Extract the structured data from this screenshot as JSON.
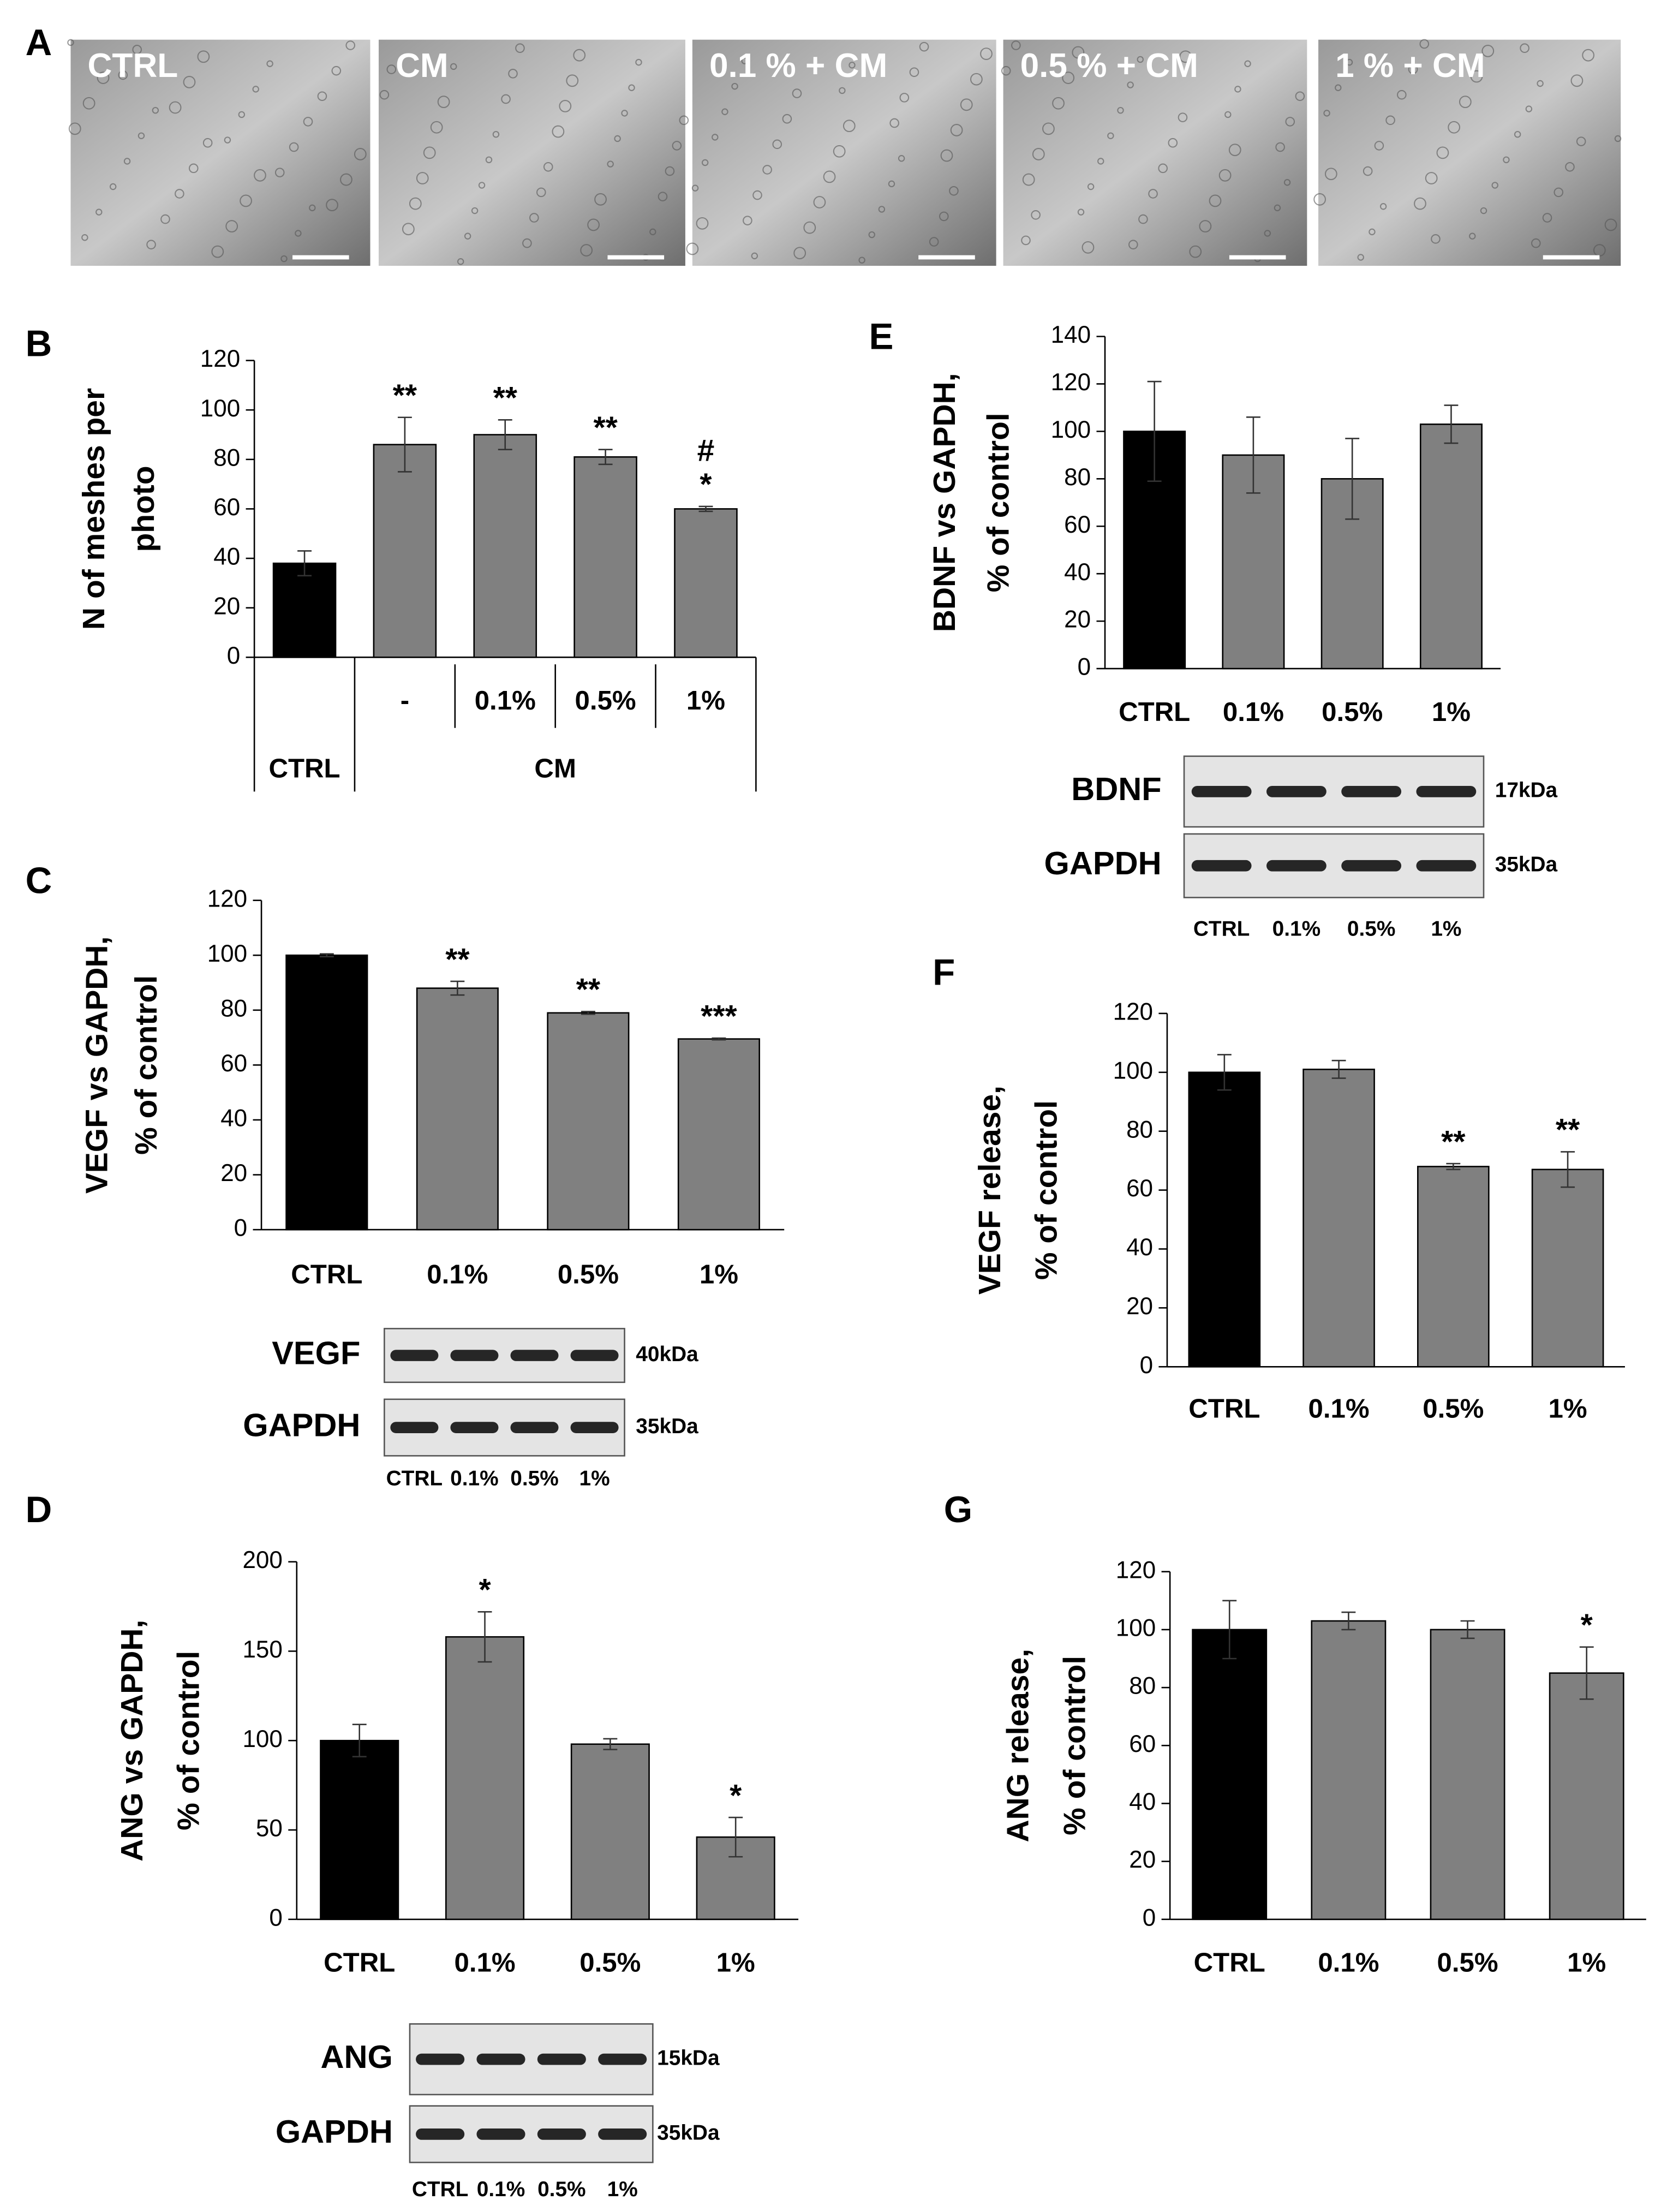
{
  "panel_a": {
    "label": "A",
    "images": [
      "CTRL",
      "CM",
      "0.1 % + CM",
      "0.5 % + CM",
      "1 % + CM"
    ]
  },
  "chart_data": [
    {
      "type": "bar",
      "label": "B",
      "ylabel": [
        "N of meshes  per",
        "photo"
      ],
      "categories": [
        null,
        "-",
        "0.1%",
        "0.5%",
        "1%"
      ],
      "groups": [
        {
          "label": "CTRL",
          "count": 1
        },
        {
          "label": "CM",
          "count": 4
        }
      ],
      "values": [
        38,
        86,
        90,
        81,
        60
      ],
      "errors": [
        5,
        11,
        6,
        3,
        1
      ],
      "significance": [
        null,
        [
          "**"
        ],
        [
          "**"
        ],
        [
          "**"
        ],
        [
          "#",
          "*"
        ]
      ],
      "colors": [
        "#000000",
        "#808080",
        "#808080",
        "#808080",
        "#808080"
      ],
      "ylim": [
        0,
        120
      ],
      "yticks": [
        0,
        20,
        40,
        60,
        80,
        100,
        120
      ]
    },
    {
      "type": "bar",
      "label": "C",
      "ylabel": [
        "VEGF vs GAPDH,",
        "% of control"
      ],
      "categories": [
        "CTRL",
        "0.1%",
        "0.5%",
        "1%"
      ],
      "values": [
        100,
        88,
        79,
        69.5
      ],
      "errors": [
        0.5,
        2.5,
        0.5,
        0.3
      ],
      "significance": [
        null,
        [
          "**"
        ],
        [
          "**"
        ],
        [
          "***"
        ]
      ],
      "colors": [
        "#000000",
        "#808080",
        "#808080",
        "#808080"
      ],
      "ylim": [
        0,
        120
      ],
      "yticks": [
        0,
        20,
        40,
        60,
        80,
        100,
        120
      ],
      "blot": {
        "rows": [
          {
            "name": "VEGF",
            "size": "40kDa"
          },
          {
            "name": "GAPDH",
            "size": "35kDa"
          }
        ],
        "lanes": [
          "CTRL",
          "0.1%",
          "0.5%",
          "1%"
        ]
      }
    },
    {
      "type": "bar",
      "label": "D",
      "ylabel": [
        "ANG vs GAPDH,",
        "% of control"
      ],
      "categories": [
        "CTRL",
        "0.1%",
        "0.5%",
        "1%"
      ],
      "values": [
        100,
        158,
        98,
        46
      ],
      "errors": [
        9,
        14,
        3,
        11
      ],
      "significance": [
        null,
        [
          "*"
        ],
        null,
        [
          "*"
        ]
      ],
      "colors": [
        "#000000",
        "#808080",
        "#808080",
        "#808080"
      ],
      "ylim": [
        0,
        200
      ],
      "yticks": [
        0,
        50,
        100,
        150,
        200
      ],
      "blot": {
        "rows": [
          {
            "name": "ANG",
            "size": "15kDa"
          },
          {
            "name": "GAPDH",
            "size": "35kDa"
          }
        ],
        "lanes": [
          "CTRL",
          "0.1%",
          "0.5%",
          "1%"
        ]
      }
    },
    {
      "type": "bar",
      "label": "E",
      "ylabel": [
        "BDNF vs GAPDH,",
        "% of control"
      ],
      "categories": [
        "CTRL",
        "0.1%",
        "0.5%",
        "1%"
      ],
      "values": [
        100,
        90,
        80,
        103
      ],
      "errors": [
        21,
        16,
        17,
        8
      ],
      "significance": [
        null,
        null,
        null,
        null
      ],
      "colors": [
        "#000000",
        "#808080",
        "#808080",
        "#808080"
      ],
      "ylim": [
        0,
        140
      ],
      "yticks": [
        0,
        20,
        40,
        60,
        80,
        100,
        120,
        140
      ],
      "blot": {
        "rows": [
          {
            "name": "BDNF",
            "size": "17kDa"
          },
          {
            "name": "GAPDH",
            "size": "35kDa"
          }
        ],
        "lanes": [
          "CTRL",
          "0.1%",
          "0.5%",
          "1%"
        ]
      }
    },
    {
      "type": "bar",
      "label": "F",
      "ylabel": [
        "VEGF release,",
        "% of control"
      ],
      "categories": [
        "CTRL",
        "0.1%",
        "0.5%",
        "1%"
      ],
      "values": [
        100,
        101,
        68,
        67
      ],
      "errors": [
        6,
        3,
        1,
        6
      ],
      "significance": [
        null,
        null,
        [
          "**"
        ],
        [
          "**"
        ]
      ],
      "colors": [
        "#000000",
        "#808080",
        "#808080",
        "#808080"
      ],
      "ylim": [
        0,
        120
      ],
      "yticks": [
        0,
        20,
        40,
        60,
        80,
        100,
        120
      ]
    },
    {
      "type": "bar",
      "label": "G",
      "ylabel": [
        "ANG release,",
        "% of control"
      ],
      "categories": [
        "CTRL",
        "0.1%",
        "0.5%",
        "1%"
      ],
      "values": [
        100,
        103,
        100,
        85
      ],
      "errors": [
        10,
        3,
        3,
        9
      ],
      "significance": [
        null,
        null,
        null,
        [
          "*"
        ]
      ],
      "colors": [
        "#000000",
        "#808080",
        "#808080",
        "#808080"
      ],
      "ylim": [
        0,
        120
      ],
      "yticks": [
        0,
        20,
        40,
        60,
        80,
        100,
        120
      ]
    }
  ]
}
